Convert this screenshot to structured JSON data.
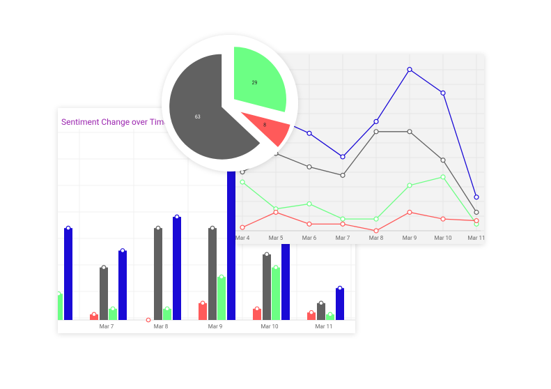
{
  "chart_data": [
    {
      "type": "bar",
      "title": "Sentiment Change over Time",
      "categories": [
        null,
        "Mar 7",
        "Mar 8",
        "Mar 9",
        "Mar 10",
        "Mar 11"
      ],
      "ylim": [
        0,
        100
      ],
      "series": [
        {
          "color": "#ff5a5a",
          "values": [
            5,
            3,
            0,
            9,
            6,
            4
          ]
        },
        {
          "color": "#616161",
          "values": [
            30,
            28,
            49,
            49,
            35,
            9
          ]
        },
        {
          "color": "#6cff84",
          "values": [
            14,
            6,
            6,
            23,
            28,
            3
          ]
        },
        {
          "color": "#1a0ad6",
          "values": [
            49,
            37,
            55,
            90,
            60,
            17
          ]
        }
      ]
    },
    {
      "type": "line",
      "categories": [
        "Mar 4",
        "Mar 5",
        "Mar 6",
        "Mar 7",
        "Mar 8",
        "Mar 9",
        "Mar 10",
        "Mar 11"
      ],
      "ylim": [
        0,
        100
      ],
      "series": [
        {
          "color": "#1a0ad6",
          "values": [
            75,
            67,
            58,
            44,
            65,
            96,
            82,
            20
          ]
        },
        {
          "color": "#616161",
          "values": [
            35,
            46,
            38,
            33,
            59,
            59,
            42,
            11
          ]
        },
        {
          "color": "#6cff84",
          "values": [
            29,
            13,
            16,
            7,
            7,
            27,
            32,
            4
          ]
        },
        {
          "color": "#ff5a5a",
          "values": [
            2,
            11,
            4,
            4,
            0,
            11,
            7,
            6
          ]
        }
      ]
    },
    {
      "type": "pie",
      "values": [
        29,
        8,
        63
      ],
      "colors": [
        "#6cff84",
        "#ff5a5a",
        "#616161"
      ]
    }
  ]
}
